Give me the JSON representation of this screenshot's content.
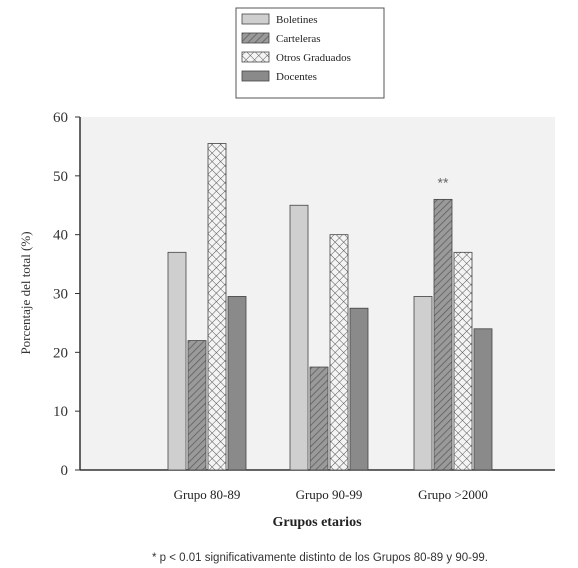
{
  "chart_data": {
    "type": "bar",
    "title": "",
    "xlabel": "Grupos etarios",
    "ylabel": "Porcentaje del total (%)",
    "ylim": [
      0,
      60
    ],
    "yticks": [
      0,
      10,
      20,
      30,
      40,
      50,
      60
    ],
    "grid": false,
    "legend_position": "top-center",
    "categories": [
      "Grupo 80-89",
      "Grupo 90-99",
      "Grupo >2000"
    ],
    "series": [
      {
        "name": "Boletines",
        "values": [
          37,
          45,
          29.5
        ]
      },
      {
        "name": "Carteleras",
        "values": [
          22,
          17.5,
          46
        ]
      },
      {
        "name": "Otros Graduados",
        "values": [
          55.5,
          40,
          37
        ]
      },
      {
        "name": "Docentes",
        "values": [
          29.5,
          27.5,
          24
        ]
      }
    ],
    "annotations": [
      {
        "text": "**",
        "category": "Grupo >2000"
      }
    ],
    "footnote": "* p < 0.01 significativamente distinto de los Grupos 80-89 y 90-99."
  },
  "styles": {
    "series_colors": [
      "#cfcfcf",
      "#8f8f8f",
      "#f0f0f0",
      "#8a8a8a"
    ],
    "series_patterns": [
      "solid",
      "diagonal",
      "crosshatch",
      "solid-dark"
    ],
    "plot_background": "#f2f2f2"
  }
}
